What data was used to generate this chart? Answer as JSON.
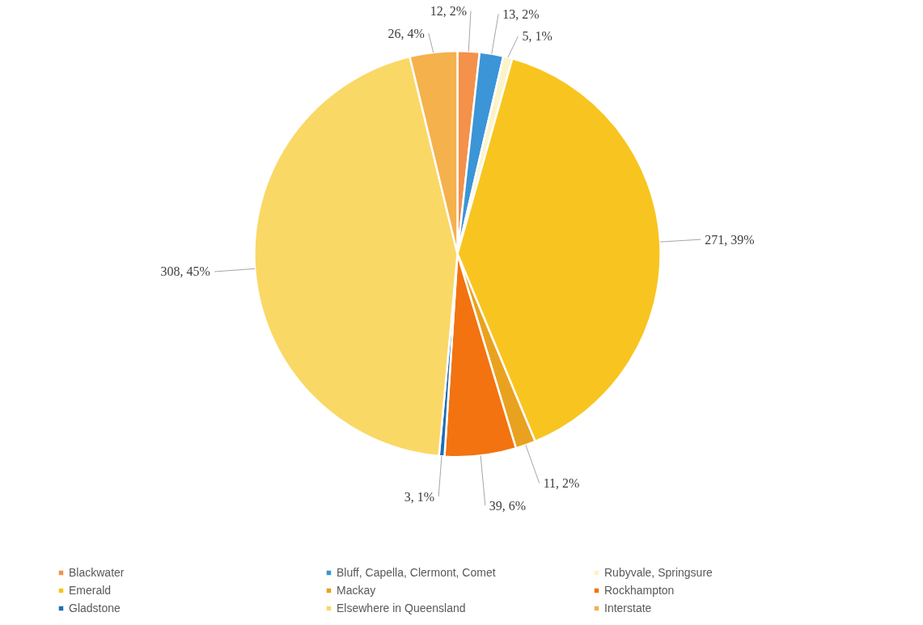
{
  "chart_data": {
    "type": "pie",
    "categories": [
      "Blackwater",
      "Bluff, Capella, Clermont, Comet",
      "Rubyvale, Springsure",
      "Emerald",
      "Mackay",
      "Rockhampton",
      "Gladstone",
      "Elsewhere in Queensland",
      "Interstate"
    ],
    "values": [
      12,
      13,
      5,
      271,
      11,
      39,
      3,
      308,
      26
    ],
    "colors": [
      "#f4914a",
      "#3b95d6",
      "#fdf3c8",
      "#f8c520",
      "#e9a21f",
      "#f27310",
      "#1f6eb5",
      "#fad866",
      "#f4b14c"
    ],
    "value_labels": [
      "12, 2%",
      "13, 2%",
      "5, 1%",
      "271, 39%",
      "11, 2%",
      "39, 6%",
      "3, 1%",
      "308, 45%",
      "26, 4%"
    ],
    "legend": "bottom"
  }
}
